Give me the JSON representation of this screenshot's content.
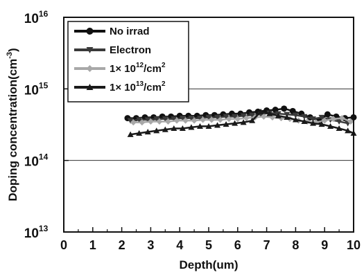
{
  "chart_data": {
    "type": "scatter",
    "xlabel": "Depth(um)",
    "ylabel": "Doping concentration(cm",
    "ylabel_sup": "-3",
    "ylabel_tail": ")",
    "xlim": [
      0,
      10
    ],
    "ylim": [
      10000000000000.0,
      1e+16
    ],
    "y_scale": "log",
    "x_ticks": [
      "0",
      "1",
      "2",
      "3",
      "4",
      "5",
      "6",
      "7",
      "8",
      "9",
      "10"
    ],
    "y_ticks": [
      {
        "base": "10",
        "exp": "13"
      },
      {
        "base": "10",
        "exp": "14"
      },
      {
        "base": "10",
        "exp": "15"
      },
      {
        "base": "10",
        "exp": "16"
      }
    ],
    "grid": "horizontal at 1e14 and 1e15",
    "legend_position": "top-left",
    "series": [
      {
        "name": "No irrad",
        "label_parts": [
          "No irrad",
          "",
          ""
        ],
        "marker": "circle",
        "color": "#111111",
        "points": [
          [
            2.2,
            390000000000000.0
          ],
          [
            2.5,
            390000000000000.0
          ],
          [
            2.8,
            400000000000000.0
          ],
          [
            3.1,
            400000000000000.0
          ],
          [
            3.4,
            410000000000000.0
          ],
          [
            3.7,
            410000000000000.0
          ],
          [
            4.0,
            420000000000000.0
          ],
          [
            4.3,
            420000000000000.0
          ],
          [
            4.6,
            420000000000000.0
          ],
          [
            4.9,
            430000000000000.0
          ],
          [
            5.2,
            430000000000000.0
          ],
          [
            5.5,
            440000000000000.0
          ],
          [
            5.8,
            450000000000000.0
          ],
          [
            6.1,
            450000000000000.0
          ],
          [
            6.4,
            470000000000000.0
          ],
          [
            6.7,
            480000000000000.0
          ],
          [
            7.0,
            500000000000000.0
          ],
          [
            7.3,
            510000000000000.0
          ],
          [
            7.6,
            530000000000000.0
          ],
          [
            7.9,
            490000000000000.0
          ],
          [
            8.2,
            450000000000000.0
          ],
          [
            8.5,
            400000000000000.0
          ],
          [
            8.8,
            360000000000000.0
          ],
          [
            9.1,
            440000000000000.0
          ],
          [
            9.4,
            410000000000000.0
          ],
          [
            9.7,
            390000000000000.0
          ],
          [
            10.0,
            400000000000000.0
          ]
        ]
      },
      {
        "name": "Electron",
        "label_parts": [
          "Electron",
          "",
          ""
        ],
        "marker": "triangle-down",
        "color": "#3a3a3a",
        "points": [
          [
            2.3,
            360000000000000.0
          ],
          [
            2.6,
            370000000000000.0
          ],
          [
            2.9,
            370000000000000.0
          ],
          [
            3.2,
            380000000000000.0
          ],
          [
            3.5,
            380000000000000.0
          ],
          [
            3.8,
            380000000000000.0
          ],
          [
            4.1,
            390000000000000.0
          ],
          [
            4.4,
            390000000000000.0
          ],
          [
            4.7,
            390000000000000.0
          ],
          [
            5.0,
            400000000000000.0
          ],
          [
            5.3,
            400000000000000.0
          ],
          [
            5.6,
            410000000000000.0
          ],
          [
            5.9,
            410000000000000.0
          ],
          [
            6.2,
            420000000000000.0
          ],
          [
            6.5,
            430000000000000.0
          ],
          [
            6.8,
            440000000000000.0
          ],
          [
            7.1,
            460000000000000.0
          ],
          [
            7.4,
            450000000000000.0
          ],
          [
            7.7,
            440000000000000.0
          ],
          [
            8.0,
            430000000000000.0
          ],
          [
            8.3,
            410000000000000.0
          ],
          [
            8.6,
            380000000000000.0
          ],
          [
            8.9,
            400000000000000.0
          ],
          [
            9.2,
            370000000000000.0
          ],
          [
            9.5,
            350000000000000.0
          ],
          [
            9.8,
            330000000000000.0
          ]
        ]
      },
      {
        "name": "1× 10^12/cm^2",
        "label_parts": [
          "1× 10",
          "12",
          "/cm"
        ],
        "label_sup2": "2",
        "marker": "diamond",
        "color": "#a8a8a8",
        "points": [
          [
            2.4,
            340000000000000.0
          ],
          [
            2.7,
            340000000000000.0
          ],
          [
            3.0,
            350000000000000.0
          ],
          [
            3.3,
            350000000000000.0
          ],
          [
            3.6,
            350000000000000.0
          ],
          [
            3.9,
            360000000000000.0
          ],
          [
            4.2,
            360000000000000.0
          ],
          [
            4.5,
            360000000000000.0
          ],
          [
            4.8,
            370000000000000.0
          ],
          [
            5.1,
            370000000000000.0
          ],
          [
            5.4,
            370000000000000.0
          ],
          [
            5.7,
            380000000000000.0
          ],
          [
            6.0,
            380000000000000.0
          ],
          [
            6.3,
            390000000000000.0
          ],
          [
            6.6,
            400000000000000.0
          ],
          [
            6.9,
            410000000000000.0
          ],
          [
            7.2,
            400000000000000.0
          ],
          [
            7.5,
            390000000000000.0
          ],
          [
            7.8,
            380000000000000.0
          ],
          [
            8.1,
            360000000000000.0
          ],
          [
            8.4,
            350000000000000.0
          ],
          [
            8.7,
            340000000000000.0
          ],
          [
            9.0,
            360000000000000.0
          ],
          [
            9.3,
            380000000000000.0
          ],
          [
            9.6,
            390000000000000.0
          ],
          [
            9.9,
            350000000000000.0
          ]
        ]
      },
      {
        "name": "1× 10^13/cm^2",
        "label_parts": [
          "1× 10",
          "13",
          "/cm"
        ],
        "label_sup2": "2",
        "marker": "triangle-up",
        "color": "#1a1a1a",
        "points": [
          [
            2.3,
            230000000000000.0
          ],
          [
            2.6,
            240000000000000.0
          ],
          [
            2.9,
            250000000000000.0
          ],
          [
            3.2,
            260000000000000.0
          ],
          [
            3.5,
            270000000000000.0
          ],
          [
            3.8,
            280000000000000.0
          ],
          [
            4.1,
            280000000000000.0
          ],
          [
            4.4,
            290000000000000.0
          ],
          [
            4.7,
            300000000000000.0
          ],
          [
            5.0,
            300000000000000.0
          ],
          [
            5.3,
            310000000000000.0
          ],
          [
            5.6,
            320000000000000.0
          ],
          [
            5.9,
            330000000000000.0
          ],
          [
            6.2,
            340000000000000.0
          ],
          [
            6.5,
            360000000000000.0
          ],
          [
            6.8,
            480000000000000.0
          ],
          [
            7.1,
            450000000000000.0
          ],
          [
            7.4,
            420000000000000.0
          ],
          [
            7.7,
            400000000000000.0
          ],
          [
            8.0,
            370000000000000.0
          ],
          [
            8.3,
            350000000000000.0
          ],
          [
            8.6,
            330000000000000.0
          ],
          [
            8.9,
            320000000000000.0
          ],
          [
            9.2,
            300000000000000.0
          ],
          [
            9.5,
            280000000000000.0
          ],
          [
            9.8,
            260000000000000.0
          ],
          [
            10.0,
            240000000000000.0
          ]
        ]
      }
    ]
  }
}
